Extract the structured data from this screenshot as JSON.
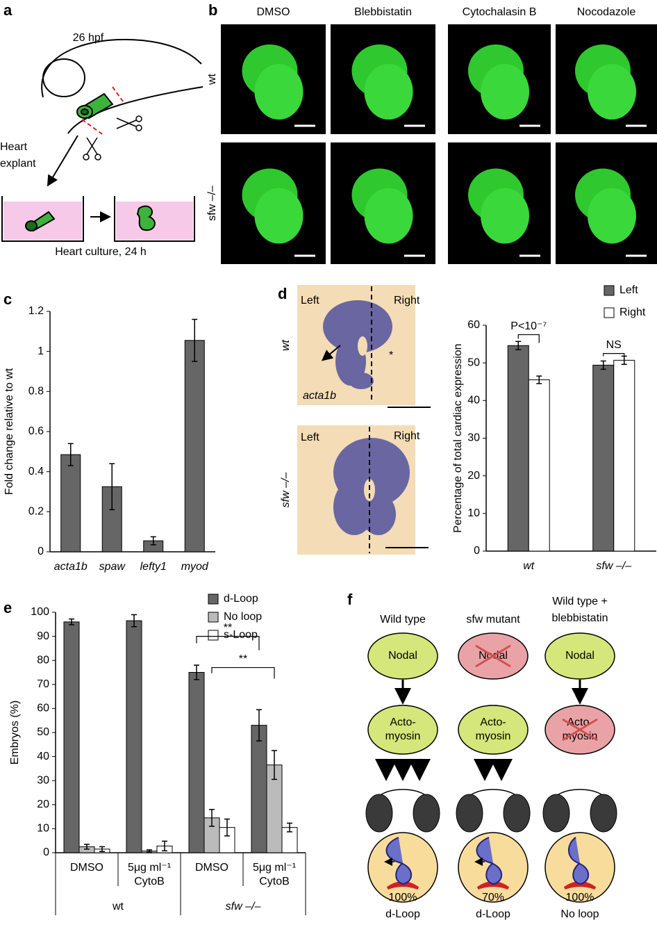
{
  "panel_labels": {
    "a": "a",
    "b": "b",
    "c": "c",
    "d": "d",
    "e": "e",
    "f": "f"
  },
  "panel_a": {
    "stage": "26 hpf",
    "explant": [
      "Heart",
      "explant"
    ],
    "culture": "Heart culture, 24 h"
  },
  "panel_b": {
    "treatments": [
      "DMSO",
      "Blebbistatin",
      "Cytochalasin B",
      "Nocodazole"
    ],
    "genotypes": [
      "wt",
      "sfw –/–"
    ]
  },
  "panel_d_images": {
    "genotypes": [
      "wt",
      "sfw –/–"
    ],
    "sides": [
      "Left",
      "Right"
    ],
    "probe": "acta1b",
    "marker": "*"
  },
  "chart_data": [
    {
      "type": "bar",
      "ylabel": "Fold change relative to wt",
      "categories": [
        "acta1b",
        "spaw",
        "lefty1",
        "myod"
      ],
      "values": [
        0.485,
        0.325,
        0.055,
        1.055
      ],
      "errors": [
        0.055,
        0.115,
        0.02,
        0.105
      ],
      "color": "#666666",
      "ylim": [
        0,
        1.2
      ],
      "yticks": [
        0,
        0.2,
        0.4,
        0.6,
        0.8,
        1,
        1.2
      ]
    },
    {
      "type": "bar",
      "ylabel": "Percentage of total cardiac expression",
      "categories": [
        "wt",
        "sfw –/–"
      ],
      "series": [
        {
          "name": "Left",
          "color": "#666666",
          "values": [
            54.6,
            49.4
          ],
          "errors": [
            1.1,
            1.1
          ]
        },
        {
          "name": "Right",
          "color": "#ffffff",
          "values": [
            45.5,
            50.7
          ],
          "errors": [
            1,
            1.1
          ]
        }
      ],
      "ylim": [
        0,
        60
      ],
      "yticks": [
        0,
        10,
        20,
        30,
        40,
        50,
        60
      ],
      "annotations": [
        "P<10⁻⁷",
        "NS"
      ]
    },
    {
      "type": "bar",
      "ylabel": "Embryos (%)",
      "categories": [
        [
          "DMSO"
        ],
        [
          "5μg ml⁻¹",
          "CytoB"
        ],
        [
          "DMSO"
        ],
        [
          "5μg ml⁻¹",
          "CytoB"
        ]
      ],
      "groups": [
        "wt",
        "sfw –/–"
      ],
      "series": [
        {
          "name": "d-Loop",
          "color": "#666666",
          "values": [
            96,
            96.5,
            75,
            53
          ],
          "errors": [
            1.2,
            2.5,
            3,
            6.5
          ]
        },
        {
          "name": "No loop",
          "color": "#bbbbbb",
          "values": [
            2.5,
            0.7,
            14.5,
            36.5
          ],
          "errors": [
            1,
            0.5,
            3.5,
            6
          ]
        },
        {
          "name": "s-Loop",
          "color": "#ffffff",
          "values": [
            1.5,
            2.8,
            10.5,
            10.5
          ],
          "errors": [
            1,
            2,
            3.5,
            1.8
          ]
        }
      ],
      "ylim": [
        0,
        100
      ],
      "yticks": [
        0,
        10,
        20,
        30,
        40,
        50,
        60,
        70,
        80,
        90,
        100
      ],
      "annotations": [
        "**",
        "**"
      ]
    }
  ],
  "panel_f": {
    "columns": [
      {
        "title": [
          "Wild type"
        ],
        "signal": "Nodal",
        "effector": [
          "Acto-",
          "myosin"
        ],
        "outcome": [
          "100%",
          "d-Loop"
        ]
      },
      {
        "title": [
          "sfw mutant"
        ],
        "signal": "Nodal",
        "effector": [
          "Acto-",
          "myosin"
        ],
        "outcome": [
          "70%",
          "d-Loop"
        ]
      },
      {
        "title": [
          "Wild type +",
          "blebbistatin"
        ],
        "signal": "Nodal",
        "effector": [
          "Acto-",
          "myosin"
        ],
        "outcome": [
          "100%",
          "No loop"
        ]
      }
    ]
  }
}
